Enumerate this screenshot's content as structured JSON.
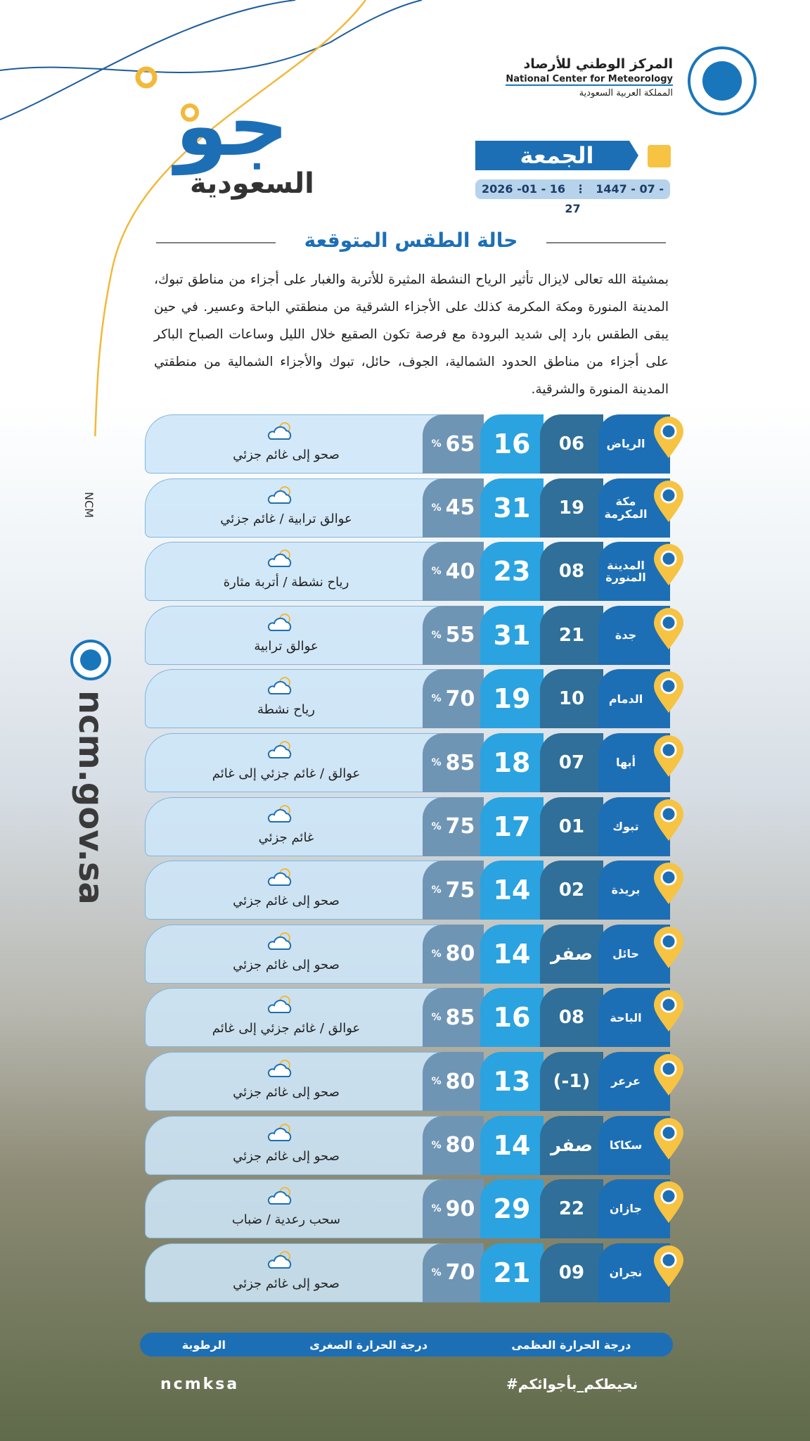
{
  "header": {
    "org_ar": "المركز الوطني للأرصاد",
    "org_en": "National Center for Meteorology",
    "country": "المملكة العربية السعودية",
    "brand": "جو",
    "brand_sub": "السعودية",
    "day": "الجمعة",
    "date_hijri": "1447 - 07 - 27",
    "date_greg": "2026 -01 - 16"
  },
  "section_title": "حالة الطقس المتوقعة",
  "summary": "بمشيئة الله تعالى لايزال تأثير الرياح النشطة المثيرة للأتربة والغبار على أجزاء من مناطق تبوك، المدينة المنورة ومكة المكرمة كذلك على الأجزاء الشرقية من منطقتي الباحة وعسير. في حين يبقى الطقس بارد إلى شديد البرودة مع فرصة تكون الصقيع خلال الليل وساعات الصباح الباكر على أجزاء من مناطق الحدود الشمالية، الجوف، حائل، تبوك والأجزاء الشمالية من منطقتي المدينة المنورة والشرقية.",
  "humidity_unit": "%",
  "table": {
    "rows": [
      {
        "city": "الرياض",
        "min": "06",
        "max": "16",
        "humidity": "65",
        "condition": "صحو إلى غائم جزئي"
      },
      {
        "city": "مكة المكرمة",
        "min": "19",
        "max": "31",
        "humidity": "45",
        "condition": "عوالق ترابية / غائم جزئي"
      },
      {
        "city": "المدينة المنورة",
        "min": "08",
        "max": "23",
        "humidity": "40",
        "condition": "رياح نشطة / أتربة مثارة"
      },
      {
        "city": "جدة",
        "min": "21",
        "max": "31",
        "humidity": "55",
        "condition": "عوالق ترابية"
      },
      {
        "city": "الدمام",
        "min": "10",
        "max": "19",
        "humidity": "70",
        "condition": "رياح نشطة"
      },
      {
        "city": "أبها",
        "min": "07",
        "max": "18",
        "humidity": "85",
        "condition": "عوالق / غائم جزئي إلى غائم"
      },
      {
        "city": "تبوك",
        "min": "01",
        "max": "17",
        "humidity": "75",
        "condition": "غائم جزئي"
      },
      {
        "city": "بريدة",
        "min": "02",
        "max": "14",
        "humidity": "75",
        "condition": "صحو إلى غائم جزئي"
      },
      {
        "city": "حائل",
        "min": "صفر",
        "max": "14",
        "humidity": "80",
        "condition": "صحو إلى غائم جزئي"
      },
      {
        "city": "الباحة",
        "min": "08",
        "max": "16",
        "humidity": "85",
        "condition": "عوالق / غائم جزئي إلى غائم"
      },
      {
        "city": "عرعر",
        "min": "(-1)",
        "max": "13",
        "humidity": "80",
        "condition": "صحو إلى غائم جزئي"
      },
      {
        "city": "سكاكا",
        "min": "صفر",
        "max": "14",
        "humidity": "80",
        "condition": "صحو إلى غائم جزئي"
      },
      {
        "city": "جازان",
        "min": "22",
        "max": "29",
        "humidity": "90",
        "condition": "سحب رعدية / ضباب"
      },
      {
        "city": "نجران",
        "min": "09",
        "max": "21",
        "humidity": "70",
        "condition": "صحو إلى غائم جزئي"
      }
    ]
  },
  "legend": {
    "max": "درجة الحرارة العظمى",
    "min": "درجة الحرارة الصغرى",
    "humidity": "الرطوبة"
  },
  "side": {
    "short": "NCM",
    "site": "ncm.gov.sa"
  },
  "footer": {
    "handle": "ncmksa",
    "hashtag": "#نحيطكم_بأجوائكم"
  }
}
